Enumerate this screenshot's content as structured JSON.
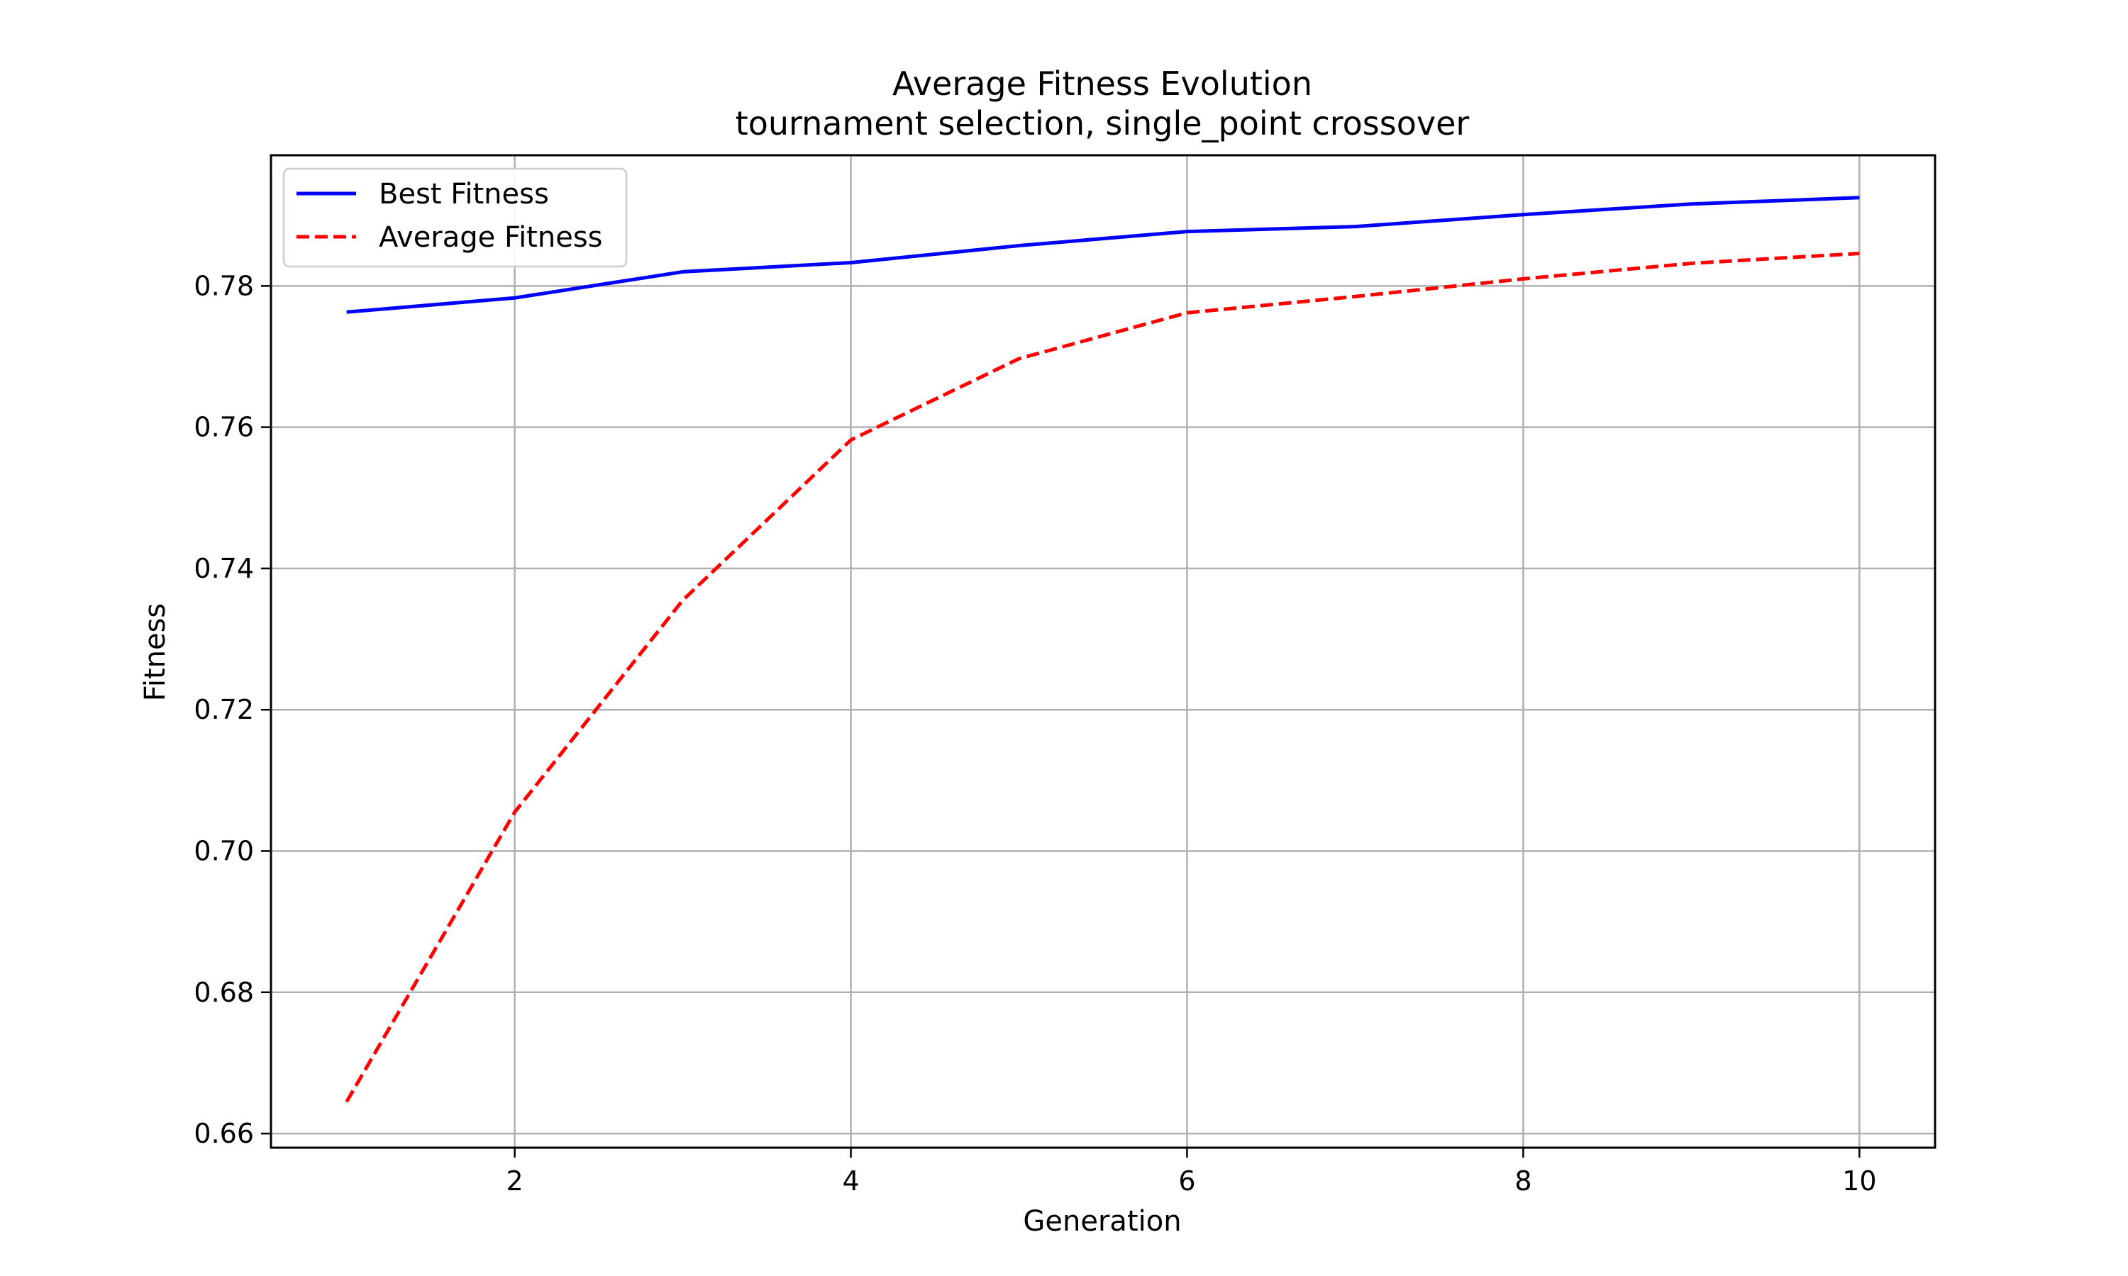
{
  "chart_data": {
    "type": "line",
    "title": "Average Fitness Evolution",
    "subtitle": "tournament selection, single_point crossover",
    "xlabel": "Generation",
    "ylabel": "Fitness",
    "xlim": [
      0.55,
      10.45
    ],
    "ylim": [
      0.658,
      0.7985
    ],
    "xticks": [
      2,
      4,
      6,
      8,
      10
    ],
    "xtick_labels": [
      "2",
      "4",
      "6",
      "8",
      "10"
    ],
    "yticks": [
      0.66,
      0.68,
      0.7,
      0.72,
      0.74,
      0.76,
      0.78
    ],
    "ytick_labels": [
      "0.66",
      "0.68",
      "0.70",
      "0.72",
      "0.74",
      "0.76",
      "0.78"
    ],
    "grid": true,
    "legend_position": "top-left",
    "x": [
      1,
      2,
      3,
      4,
      5,
      6,
      7,
      8,
      9,
      10
    ],
    "series": [
      {
        "name": "Best Fitness",
        "color": "#0000ff",
        "style": "solid",
        "values": [
          0.7763,
          0.7783,
          0.782,
          0.7833,
          0.7857,
          0.7877,
          0.7884,
          0.7901,
          0.7916,
          0.7925
        ]
      },
      {
        "name": "Average Fitness",
        "color": "#ff0000",
        "style": "dashed",
        "values": [
          0.6645,
          0.7055,
          0.7355,
          0.7582,
          0.7697,
          0.7762,
          0.7785,
          0.781,
          0.7832,
          0.7846
        ]
      }
    ]
  }
}
